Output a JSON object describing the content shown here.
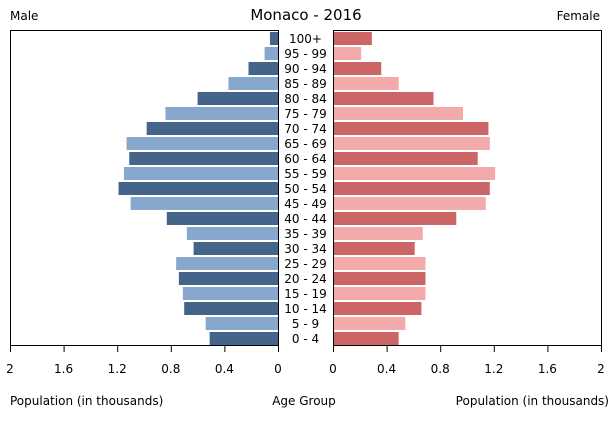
{
  "chart_data": {
    "type": "bar",
    "title": "Monaco - 2016",
    "left_label": "Male",
    "right_label": "Female",
    "xlabel_left": "Population (in thousands)",
    "xlabel_center": "Age Group",
    "xlabel_right": "Population (in thousands)",
    "xlim": [
      0,
      2
    ],
    "ticks": [
      "0",
      "0.4",
      "0.8",
      "1.2",
      "1.6",
      "2"
    ],
    "tick_values": [
      0,
      0.4,
      0.8,
      1.2,
      1.6,
      2
    ],
    "categories": [
      "100+",
      "95 - 99",
      "90 - 94",
      "85 - 89",
      "80 - 84",
      "75 - 79",
      "70 - 74",
      "65 - 69",
      "60 - 64",
      "55 - 59",
      "50 - 54",
      "45 - 49",
      "40 - 44",
      "35 - 39",
      "30 - 34",
      "25 - 29",
      "20 - 24",
      "15 - 19",
      "10 - 14",
      "5 - 9",
      "0 - 4"
    ],
    "series": [
      {
        "name": "Male",
        "values": [
          0.06,
          0.1,
          0.22,
          0.37,
          0.6,
          0.84,
          0.98,
          1.13,
          1.11,
          1.15,
          1.19,
          1.1,
          0.83,
          0.68,
          0.63,
          0.76,
          0.74,
          0.71,
          0.7,
          0.54,
          0.51
        ]
      },
      {
        "name": "Female",
        "values": [
          0.29,
          0.21,
          0.36,
          0.49,
          0.75,
          0.97,
          1.16,
          1.17,
          1.08,
          1.21,
          1.17,
          1.14,
          0.92,
          0.67,
          0.61,
          0.69,
          0.69,
          0.69,
          0.66,
          0.54,
          0.49
        ]
      }
    ],
    "colors": {
      "male_dark": "#44648a",
      "male_light": "#87a8cc",
      "female_dark": "#cc6666",
      "female_light": "#f2aaaa"
    }
  }
}
